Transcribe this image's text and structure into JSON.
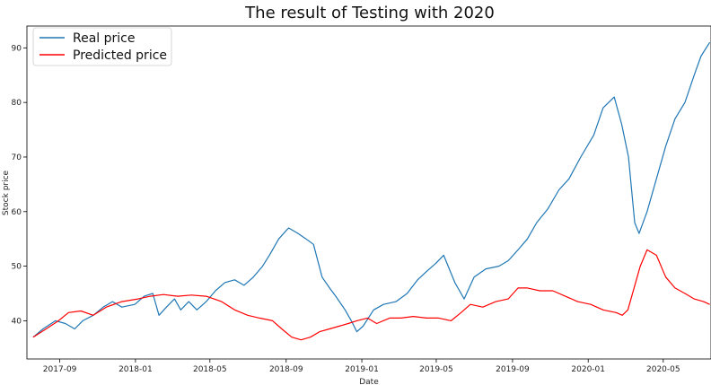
{
  "chart_data": {
    "type": "line",
    "title": "The result of Testing with 2020",
    "xlabel": "Date",
    "ylabel": "Stock price",
    "x_range": [
      "2017-07-10",
      "2020-07-17"
    ],
    "ylim": [
      33,
      94
    ],
    "yticks": [
      40,
      50,
      60,
      70,
      80,
      90
    ],
    "xticks": [
      "2017-09",
      "2018-01",
      "2018-05",
      "2018-09",
      "2019-01",
      "2019-05",
      "2019-09",
      "2020-01",
      "2020-05"
    ],
    "grid": false,
    "legend_position": "top-left",
    "series": [
      {
        "name": "Real price",
        "color": "#1f77b4",
        "x": [
          "2017-07-20",
          "2017-08-05",
          "2017-08-25",
          "2017-09-10",
          "2017-09-25",
          "2017-10-08",
          "2017-10-25",
          "2017-11-10",
          "2017-11-25",
          "2017-12-10",
          "2017-12-31",
          "2018-01-15",
          "2018-01-29",
          "2018-02-08",
          "2018-02-20",
          "2018-03-05",
          "2018-03-15",
          "2018-03-28",
          "2018-04-10",
          "2018-04-25",
          "2018-05-10",
          "2018-05-25",
          "2018-06-10",
          "2018-06-25",
          "2018-07-10",
          "2018-07-25",
          "2018-08-05",
          "2018-08-20",
          "2018-09-05",
          "2018-09-20",
          "2018-10-03",
          "2018-10-15",
          "2018-10-29",
          "2018-11-10",
          "2018-11-20",
          "2018-12-05",
          "2018-12-15",
          "2018-12-24",
          "2019-01-03",
          "2019-01-20",
          "2019-02-05",
          "2019-02-25",
          "2019-03-15",
          "2019-04-01",
          "2019-04-15",
          "2019-04-30",
          "2019-05-13",
          "2019-05-31",
          "2019-06-15",
          "2019-07-01",
          "2019-07-20",
          "2019-08-10",
          "2019-08-25",
          "2019-09-10",
          "2019-09-25",
          "2019-10-10",
          "2019-10-28",
          "2019-11-15",
          "2019-12-01",
          "2019-12-20",
          "2020-01-10",
          "2020-01-25",
          "2020-02-12",
          "2020-02-24",
          "2020-03-06",
          "2020-03-16",
          "2020-03-23",
          "2020-04-05",
          "2020-04-20",
          "2020-05-05",
          "2020-05-20",
          "2020-06-05",
          "2020-06-20",
          "2020-07-01",
          "2020-07-15"
        ],
        "values": [
          37.0,
          38.5,
          40.0,
          39.5,
          38.5,
          40.0,
          41.0,
          42.5,
          43.5,
          42.5,
          43.0,
          44.5,
          45.0,
          41.0,
          42.5,
          44.0,
          42.0,
          43.5,
          42.0,
          43.5,
          45.5,
          47.0,
          47.5,
          46.5,
          48.0,
          50.0,
          52.0,
          55.0,
          57.0,
          56.0,
          55.0,
          54.0,
          48.0,
          46.0,
          44.5,
          42.0,
          40.0,
          38.0,
          39.0,
          42.0,
          43.0,
          43.5,
          45.0,
          47.5,
          49.0,
          50.5,
          52.0,
          47.0,
          44.0,
          48.0,
          49.5,
          50.0,
          51.0,
          53.0,
          55.0,
          58.0,
          60.5,
          64.0,
          66.0,
          70.0,
          74.0,
          79.0,
          81.0,
          76.0,
          70.0,
          58.0,
          56.0,
          60.0,
          66.0,
          72.0,
          77.0,
          80.0,
          85.0,
          88.5,
          91.0
        ]
      },
      {
        "name": "Predicted price",
        "color": "#ff0000",
        "x": [
          "2017-07-20",
          "2017-08-10",
          "2017-08-30",
          "2017-09-15",
          "2017-10-05",
          "2017-10-25",
          "2017-11-15",
          "2017-12-10",
          "2018-01-05",
          "2018-01-25",
          "2018-02-15",
          "2018-03-10",
          "2018-04-01",
          "2018-04-25",
          "2018-05-20",
          "2018-06-10",
          "2018-07-01",
          "2018-07-20",
          "2018-08-10",
          "2018-08-25",
          "2018-09-10",
          "2018-09-25",
          "2018-10-10",
          "2018-10-25",
          "2018-11-10",
          "2018-11-25",
          "2018-12-10",
          "2018-12-24",
          "2019-01-10",
          "2019-01-25",
          "2019-02-15",
          "2019-03-05",
          "2019-03-25",
          "2019-04-15",
          "2019-05-05",
          "2019-05-25",
          "2019-06-10",
          "2019-06-25",
          "2019-07-15",
          "2019-08-05",
          "2019-08-25",
          "2019-09-10",
          "2019-09-25",
          "2019-10-15",
          "2019-11-05",
          "2019-11-25",
          "2019-12-15",
          "2020-01-05",
          "2020-01-25",
          "2020-02-15",
          "2020-02-25",
          "2020-03-05",
          "2020-03-15",
          "2020-03-25",
          "2020-04-05",
          "2020-04-20",
          "2020-05-05",
          "2020-05-20",
          "2020-06-05",
          "2020-06-20",
          "2020-07-05",
          "2020-07-15"
        ],
        "values": [
          37.0,
          38.5,
          40.0,
          41.5,
          41.8,
          41.0,
          42.5,
          43.5,
          44.0,
          44.5,
          44.8,
          44.5,
          44.7,
          44.5,
          43.5,
          42.0,
          41.0,
          40.5,
          40.0,
          38.5,
          37.0,
          36.5,
          37.0,
          38.0,
          38.5,
          39.0,
          39.5,
          40.0,
          40.5,
          39.5,
          40.5,
          40.5,
          40.8,
          40.5,
          40.5,
          40.0,
          41.5,
          43.0,
          42.5,
          43.5,
          44.0,
          46.0,
          46.0,
          45.5,
          45.5,
          44.5,
          43.5,
          43.0,
          42.0,
          41.5,
          41.0,
          42.0,
          46.0,
          50.0,
          53.0,
          52.0,
          48.0,
          46.0,
          45.0,
          44.0,
          43.5,
          43.0
        ]
      }
    ]
  }
}
